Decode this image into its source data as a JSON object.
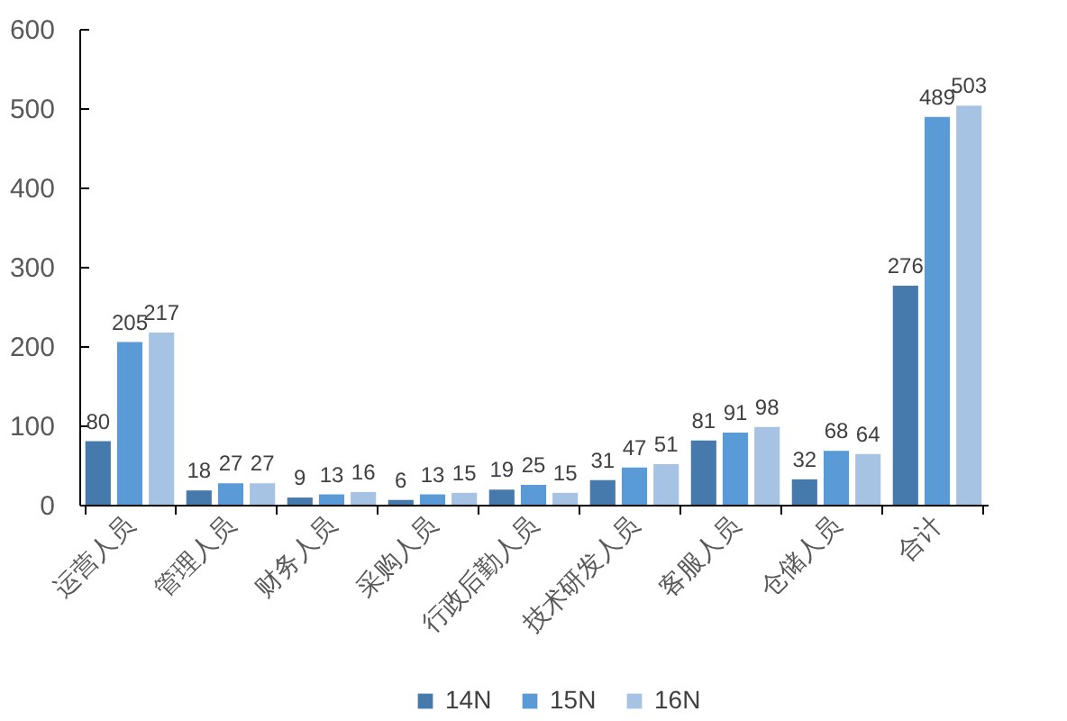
{
  "chart_data": {
    "type": "bar",
    "categories": [
      "运营人员",
      "管理人员",
      "财务人员",
      "采购人员",
      "行政后勤人员",
      "技术研发人员",
      "客服人员",
      "仓储人员",
      "合计"
    ],
    "series": [
      {
        "name": "14N",
        "color": "#467aad",
        "values": [
          80,
          18,
          9,
          6,
          19,
          31,
          81,
          32,
          276
        ]
      },
      {
        "name": "15N",
        "color": "#5a9ad6",
        "values": [
          205,
          27,
          13,
          13,
          25,
          47,
          91,
          68,
          489
        ]
      },
      {
        "name": "16N",
        "color": "#a7c3e3",
        "values": [
          217,
          27,
          16,
          15,
          15,
          51,
          98,
          64,
          503
        ]
      }
    ],
    "ylim": [
      0,
      600
    ],
    "yticks": [
      0,
      100,
      200,
      300,
      400,
      500,
      600
    ],
    "data_labels": true,
    "legend": "bottom",
    "grid": false
  }
}
